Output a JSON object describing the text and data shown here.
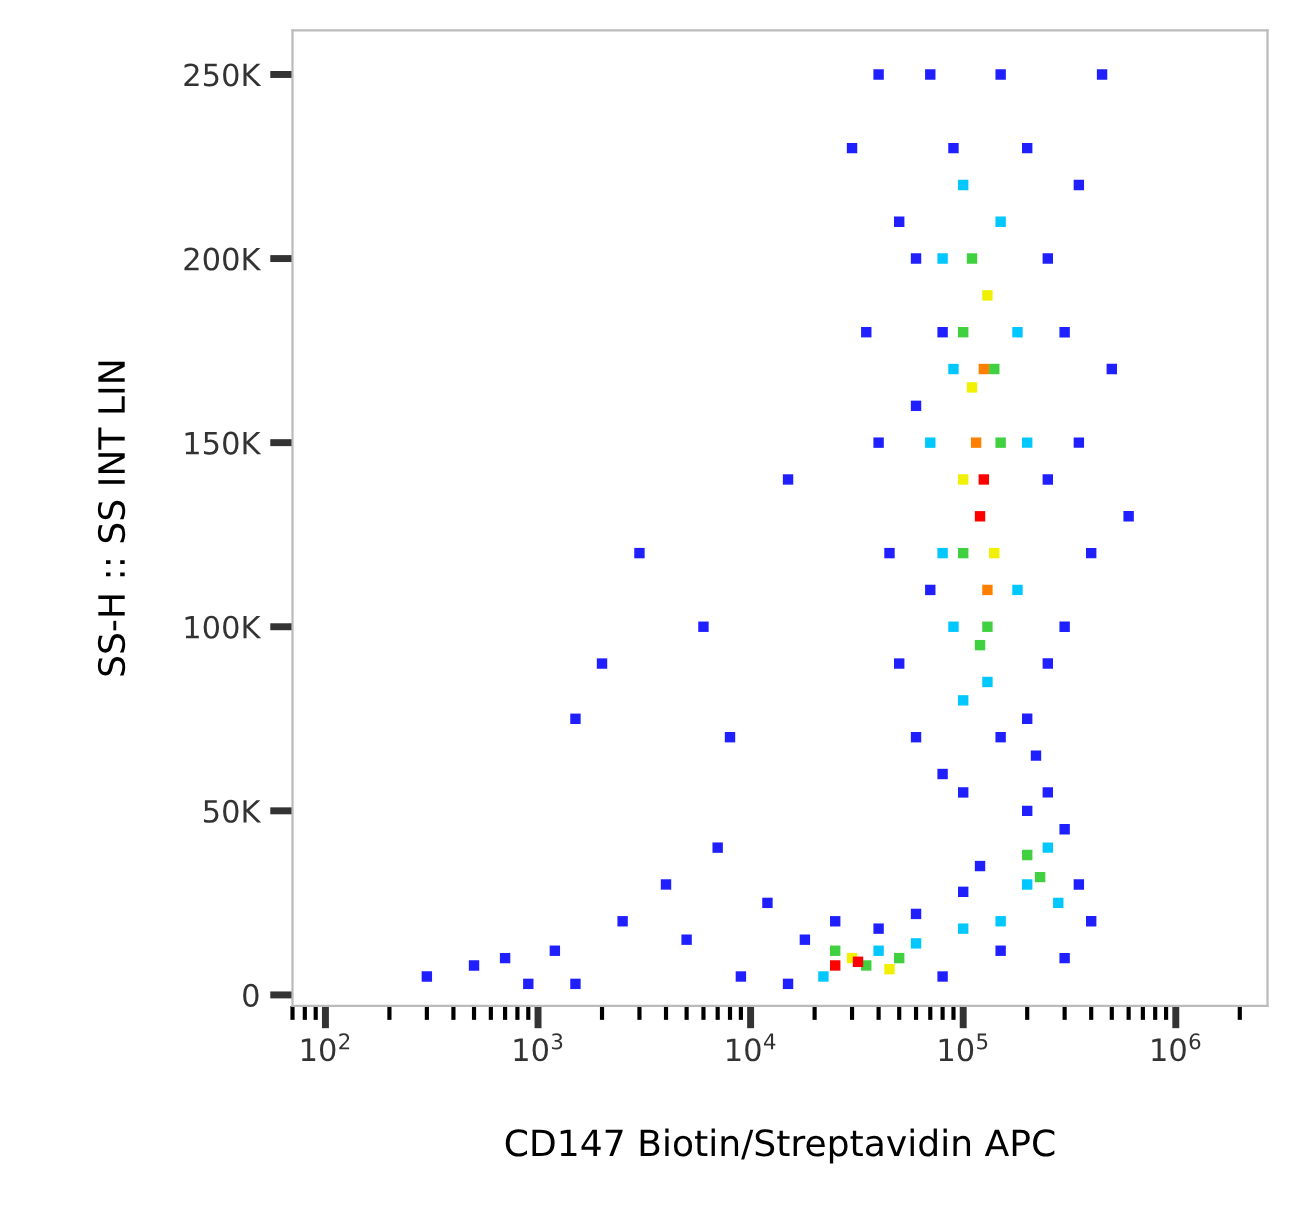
{
  "chart_data": {
    "type": "scatter",
    "xlabel": "CD147 Biotin/Streptavidin APC",
    "ylabel": "SS-H :: SS INT LIN",
    "log": "x",
    "xlim": [
      70,
      2700000
    ],
    "ylim": [
      -3000,
      262000
    ],
    "xticks": [
      {
        "value": 100,
        "label": "10$^{2}$"
      },
      {
        "value": 1000,
        "label": "10$^{3}$"
      },
      {
        "value": 10000,
        "label": "10$^{4}$"
      },
      {
        "value": 100000,
        "label": "10$^{5}$"
      },
      {
        "value": 1000000,
        "label": "10$^{6}$"
      }
    ],
    "yticks": [
      {
        "value": 0,
        "label": "0"
      },
      {
        "value": 50000,
        "label": "50K"
      },
      {
        "value": 100000,
        "label": "100K"
      },
      {
        "value": 150000,
        "label": "150K"
      },
      {
        "value": 200000,
        "label": "200K"
      },
      {
        "value": 250000,
        "label": "250K"
      }
    ],
    "grid": false,
    "legend": false,
    "marker": "square",
    "series": [
      {
        "x": [
          300,
          500,
          700,
          900,
          1200,
          1500,
          2000,
          2500,
          3000,
          4000,
          5000,
          6000,
          8000,
          9000,
          12000,
          15000,
          1500,
          7000,
          30000,
          35000,
          40000,
          45000,
          50000,
          40000,
          60000,
          60000,
          70000,
          80000,
          90000,
          150000,
          200000,
          250000,
          300000,
          350000,
          400000,
          450000,
          500000,
          300000,
          250000,
          200000,
          150000,
          100000,
          60000,
          50000,
          70000,
          350000,
          600000,
          80000,
          250000,
          70000,
          80000,
          80000,
          90000,
          100000,
          150000,
          180000,
          200000,
          180000,
          100000,
          130000,
          90000,
          100000,
          100000,
          110000,
          130000,
          140000,
          150000,
          120000,
          110000,
          130000,
          140000,
          100000,
          115000,
          130000,
          125000,
          120000,
          125000,
          15000,
          18000,
          25000,
          40000,
          60000,
          80000,
          100000,
          150000,
          200000,
          250000,
          300000,
          350000,
          300000,
          120000,
          400000,
          220000,
          22000,
          40000,
          60000,
          100000,
          150000,
          200000,
          250000,
          280000,
          25000,
          35000,
          50000,
          200000,
          230000,
          30000,
          45000,
          25000,
          32000
        ],
        "values": [
          5000,
          8000,
          10000,
          3000,
          12000,
          75000,
          90000,
          20000,
          120000,
          30000,
          15000,
          100000,
          70000,
          5000,
          25000,
          140000,
          3000,
          40000,
          230000,
          180000,
          150000,
          120000,
          90000,
          250000,
          200000,
          70000,
          250000,
          60000,
          230000,
          250000,
          230000,
          200000,
          180000,
          150000,
          120000,
          250000,
          170000,
          100000,
          90000,
          75000,
          70000,
          55000,
          160000,
          210000,
          110000,
          220000,
          130000,
          180000,
          140000,
          150000,
          120000,
          200000,
          100000,
          220000,
          210000,
          180000,
          150000,
          110000,
          80000,
          85000,
          170000,
          180000,
          120000,
          200000,
          100000,
          170000,
          150000,
          95000,
          165000,
          190000,
          120000,
          140000,
          150000,
          110000,
          170000,
          130000,
          140000,
          3000,
          15000,
          20000,
          18000,
          22000,
          5000,
          28000,
          12000,
          50000,
          55000,
          45000,
          30000,
          10000,
          35000,
          20000,
          65000,
          5000,
          12000,
          14000,
          18000,
          20000,
          30000,
          40000,
          25000,
          12000,
          8000,
          10000,
          38000,
          32000,
          10000,
          7000,
          8000,
          9000
        ],
        "colors": [
          "#1f1fff",
          "#1f1fff",
          "#1f1fff",
          "#1f1fff",
          "#1f1fff",
          "#1f1fff",
          "#1f1fff",
          "#1f1fff",
          "#1f1fff",
          "#1f1fff",
          "#1f1fff",
          "#1f1fff",
          "#1f1fff",
          "#1f1fff",
          "#1f1fff",
          "#1f1fff",
          "#1f1fff",
          "#1f1fff",
          "#1f1fff",
          "#1f1fff",
          "#1f1fff",
          "#1f1fff",
          "#1f1fff",
          "#1f1fff",
          "#1f1fff",
          "#1f1fff",
          "#1f1fff",
          "#1f1fff",
          "#1f1fff",
          "#1f1fff",
          "#1f1fff",
          "#1f1fff",
          "#1f1fff",
          "#1f1fff",
          "#1f1fff",
          "#1f1fff",
          "#1f1fff",
          "#1f1fff",
          "#1f1fff",
          "#1f1fff",
          "#1f1fff",
          "#1f1fff",
          "#1f1fff",
          "#1f1fff",
          "#1f1fff",
          "#1f1fff",
          "#1f1fff",
          "#1f1fff",
          "#1f1fff",
          "#00c8ff",
          "#00c8ff",
          "#00c8ff",
          "#00c8ff",
          "#00c8ff",
          "#00c8ff",
          "#00c8ff",
          "#00c8ff",
          "#00c8ff",
          "#00c8ff",
          "#00c8ff",
          "#00c8ff",
          "#40d040",
          "#40d040",
          "#40d040",
          "#40d040",
          "#40d040",
          "#40d040",
          "#40d040",
          "#f0f000",
          "#f0f000",
          "#f0f000",
          "#f0f000",
          "#ff8000",
          "#ff8000",
          "#ff8000",
          "#ff0000",
          "#ff0000",
          "#1f1fff",
          "#1f1fff",
          "#1f1fff",
          "#1f1fff",
          "#1f1fff",
          "#1f1fff",
          "#1f1fff",
          "#1f1fff",
          "#1f1fff",
          "#1f1fff",
          "#1f1fff",
          "#1f1fff",
          "#1f1fff",
          "#1f1fff",
          "#1f1fff",
          "#1f1fff",
          "#00c8ff",
          "#00c8ff",
          "#00c8ff",
          "#00c8ff",
          "#00c8ff",
          "#00c8ff",
          "#00c8ff",
          "#00c8ff",
          "#40d040",
          "#40d040",
          "#40d040",
          "#40d040",
          "#40d040",
          "#f0f000",
          "#f0f000",
          "#ff0000",
          "#ff0000"
        ]
      }
    ]
  }
}
